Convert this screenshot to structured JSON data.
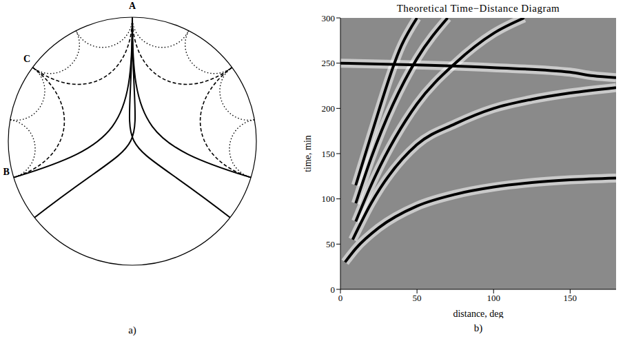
{
  "diagram": {
    "panel_label": "a)",
    "labels": [
      "A",
      "B",
      "C"
    ]
  },
  "chart_data": {
    "type": "line",
    "title": "Theoretical Time−Distance Diagram",
    "x_label": "distance, deg",
    "y_label": "time, min",
    "panel_label": "b)",
    "xlim": [
      0,
      180
    ],
    "ylim": [
      0,
      300
    ],
    "xticks": [
      0,
      50,
      100,
      150
    ],
    "yticks": [
      0,
      50,
      100,
      150,
      200,
      250,
      300
    ],
    "grid": false,
    "series": [
      {
        "color": "#000000",
        "x": [
          3,
          10,
          25,
          50,
          75,
          100,
          125,
          150,
          180
        ],
        "values": [
          30,
          45,
          68,
          92,
          105,
          113,
          118,
          121,
          123
        ]
      },
      {
        "color": "#000000",
        "x": [
          8,
          20,
          50,
          75,
          100,
          125,
          150,
          180
        ],
        "values": [
          55,
          95,
          160,
          183,
          200,
          210,
          217,
          223
        ]
      },
      {
        "color": "#000000",
        "x": [
          10,
          20,
          50,
          75,
          100,
          120
        ],
        "values": [
          75,
          115,
          205,
          250,
          283,
          300
        ]
      },
      {
        "color": "#000000",
        "x": [
          10,
          20,
          50,
          70
        ],
        "values": [
          95,
          145,
          255,
          300
        ]
      },
      {
        "color": "#000000",
        "x": [
          10,
          20,
          40,
          50
        ],
        "values": [
          115,
          170,
          270,
          300
        ]
      },
      {
        "color": "#000000",
        "x": [
          0,
          50,
          100,
          150,
          165,
          180
        ],
        "values": [
          250,
          248,
          245,
          240,
          236,
          234
        ]
      }
    ]
  }
}
